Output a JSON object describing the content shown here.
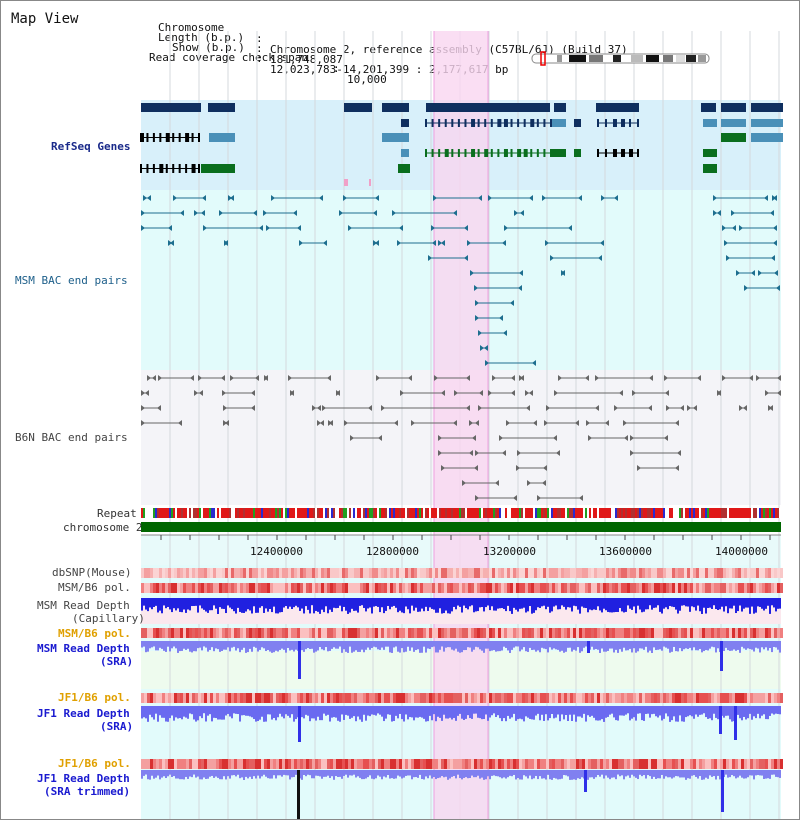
{
  "window": {
    "title": "Map View"
  },
  "info": {
    "chromosome_key": "Chromosome",
    "chromosome_value": "Chromosome 2, reference assembly (C57BL/6J) (Build 37)",
    "length_key": "Length (b.p.)",
    "length_value": "181,748,087",
    "show_key": "Show (b.p.)",
    "show_value": "12,023,783-14,201,399 : 2,177,617 bp",
    "span_key": "Read coverage check span",
    "span_value": "10,000"
  },
  "tracks": {
    "refseq": "RefSeq Genes",
    "msm_bac": "MSM BAC end pairs",
    "b6n_bac": "B6N BAC end pairs",
    "repeat": "Repeat",
    "chromosome": "chromosome 2",
    "dbsnp": "dbSNP(Mouse)",
    "msm_b6_pol_1": "MSM/B6 pol.",
    "msm_read_depth_cap_1": "MSM Read Depth",
    "msm_read_depth_cap_2": "(Capillary)",
    "msm_b6_pol_2": "MSM/B6 pol.",
    "msm_read_depth_sra_1": "MSM Read Depth",
    "msm_read_depth_sra_2": "(SRA)",
    "jf1_b6_pol_1": "JF1/B6 pol.",
    "jf1_read_depth_sra_1": "JF1 Read Depth",
    "jf1_read_depth_sra_2": "(SRA)",
    "jf1_b6_pol_2": "JF1/B6 pol.",
    "jf1_read_depth_trim_1": "JF1 Read Depth",
    "jf1_read_depth_trim_2": "(SRA trimmed)"
  },
  "axis": {
    "ticks": [
      "12400000",
      "12800000",
      "13200000",
      "13600000",
      "14000000"
    ]
  },
  "colors": {
    "highlight": "#f9d6f0",
    "refseq_bg": "#d8f0fa",
    "msm_bg": "#e2fbfb",
    "b6n_bg": "#f4f4f8",
    "chromosome": "#006600",
    "gene_navy": "#0f2f5f",
    "gene_steel": "#4a90b8",
    "gene_green": "#0a6e1e",
    "bac_teal": "#1d6e8f",
    "bac_gray": "#666666",
    "depth_blue": "#2020e0",
    "depth_violet": "#8080f0"
  }
}
